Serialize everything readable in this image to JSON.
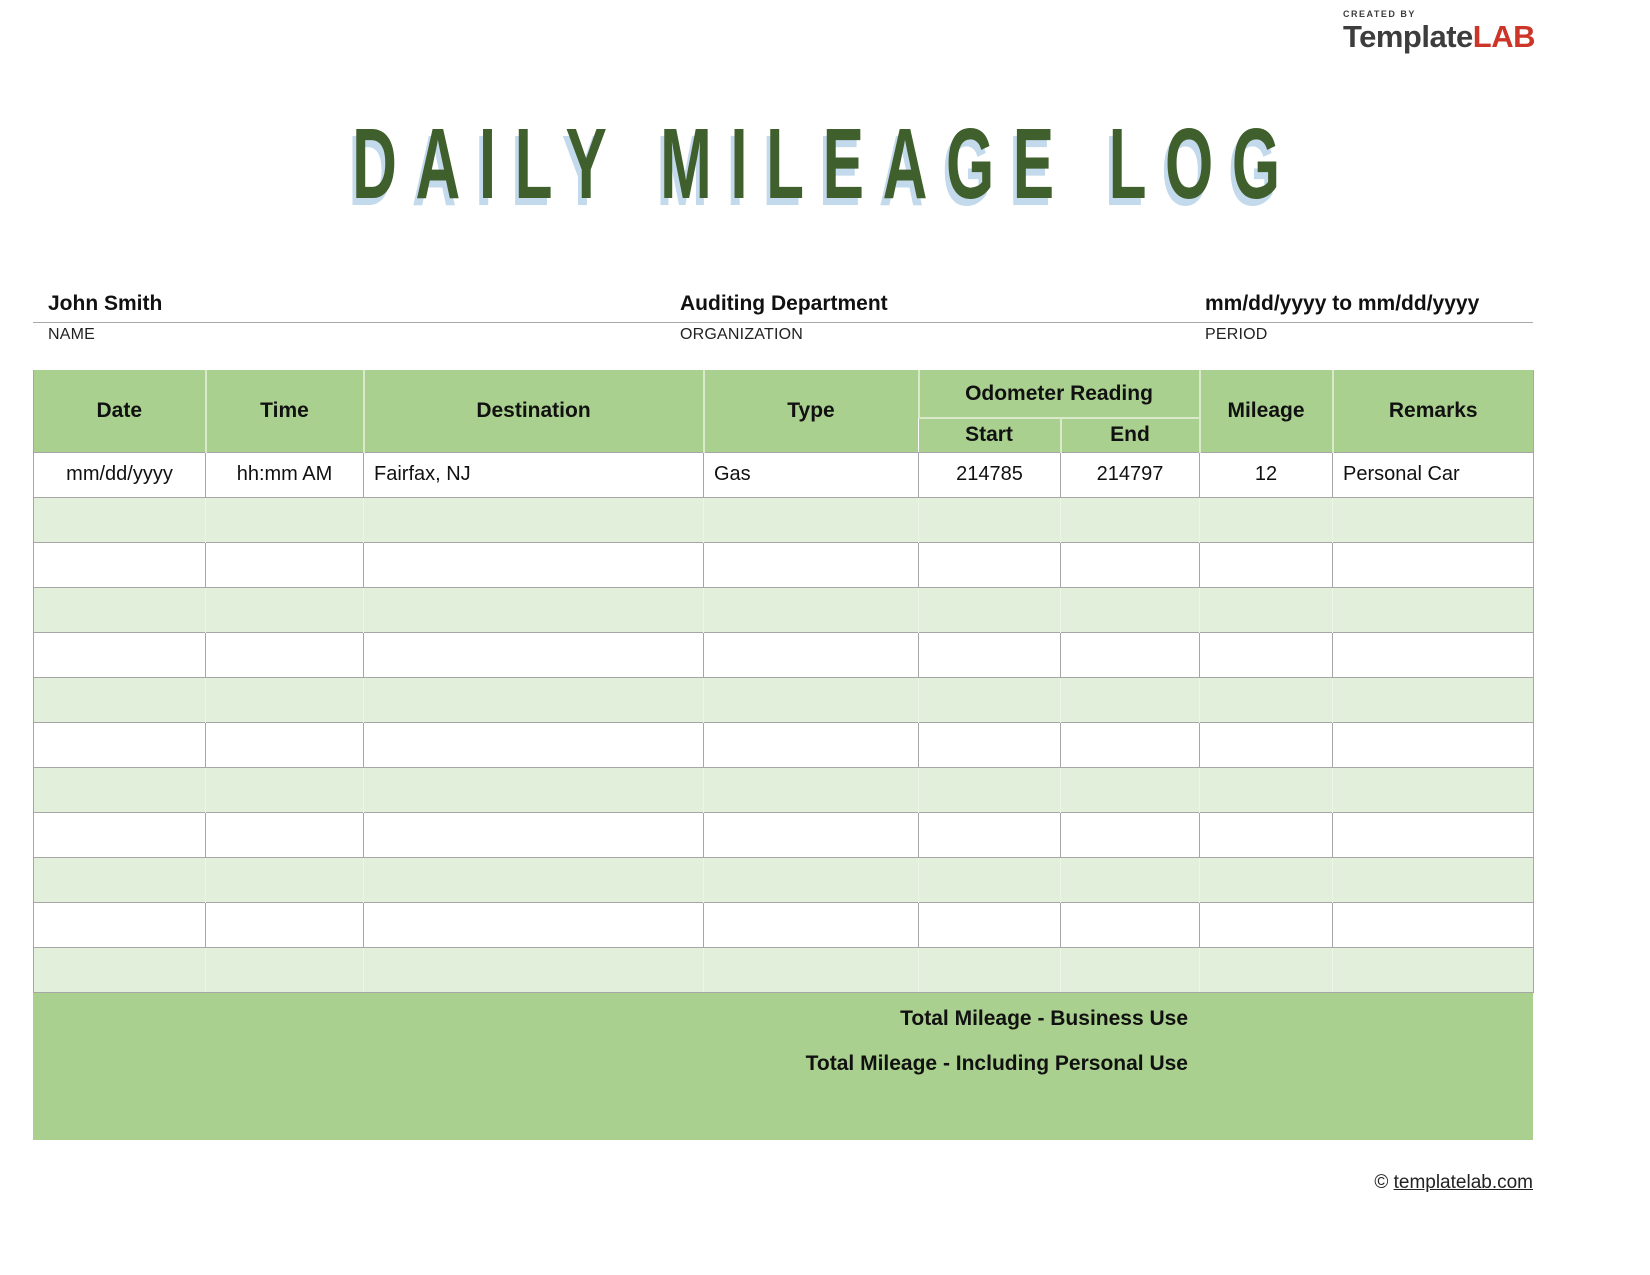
{
  "logo": {
    "created_by": "CREATED BY",
    "brand_dark": "Template",
    "brand_accent": "LAB"
  },
  "title": "DAILY MILEAGE LOG",
  "info": {
    "name": {
      "value": "John Smith",
      "label": "NAME"
    },
    "organization": {
      "value": "Auditing Department",
      "label": "ORGANIZATION"
    },
    "period": {
      "value": "mm/dd/yyyy to mm/dd/yyyy",
      "label": "PERIOD"
    }
  },
  "table": {
    "headers": {
      "date": "Date",
      "time": "Time",
      "destination": "Destination",
      "type": "Type",
      "odometer": "Odometer Reading",
      "start": "Start",
      "end": "End",
      "mileage": "Mileage",
      "remarks": "Remarks"
    },
    "rows": [
      {
        "date": "mm/dd/yyyy",
        "time": "hh:mm AM",
        "destination": "Fairfax, NJ",
        "type": "Gas",
        "start": "214785",
        "end": "214797",
        "mileage": "12",
        "remarks": "Personal Car"
      }
    ],
    "empty_row_count": 11
  },
  "totals": {
    "business": "Total Mileage - Business Use",
    "personal": "Total Mileage - Including Personal Use"
  },
  "copyright": {
    "symbol": "©",
    "link": "templatelab.com"
  },
  "colors": {
    "header_green": "#a9d08e",
    "row_green": "#e2efda",
    "title_green": "#3f5f2c",
    "title_shadow_blue": "#c3d9ec",
    "brand_red": "#cd3529",
    "gridline_gray": "#a6a6a6"
  }
}
